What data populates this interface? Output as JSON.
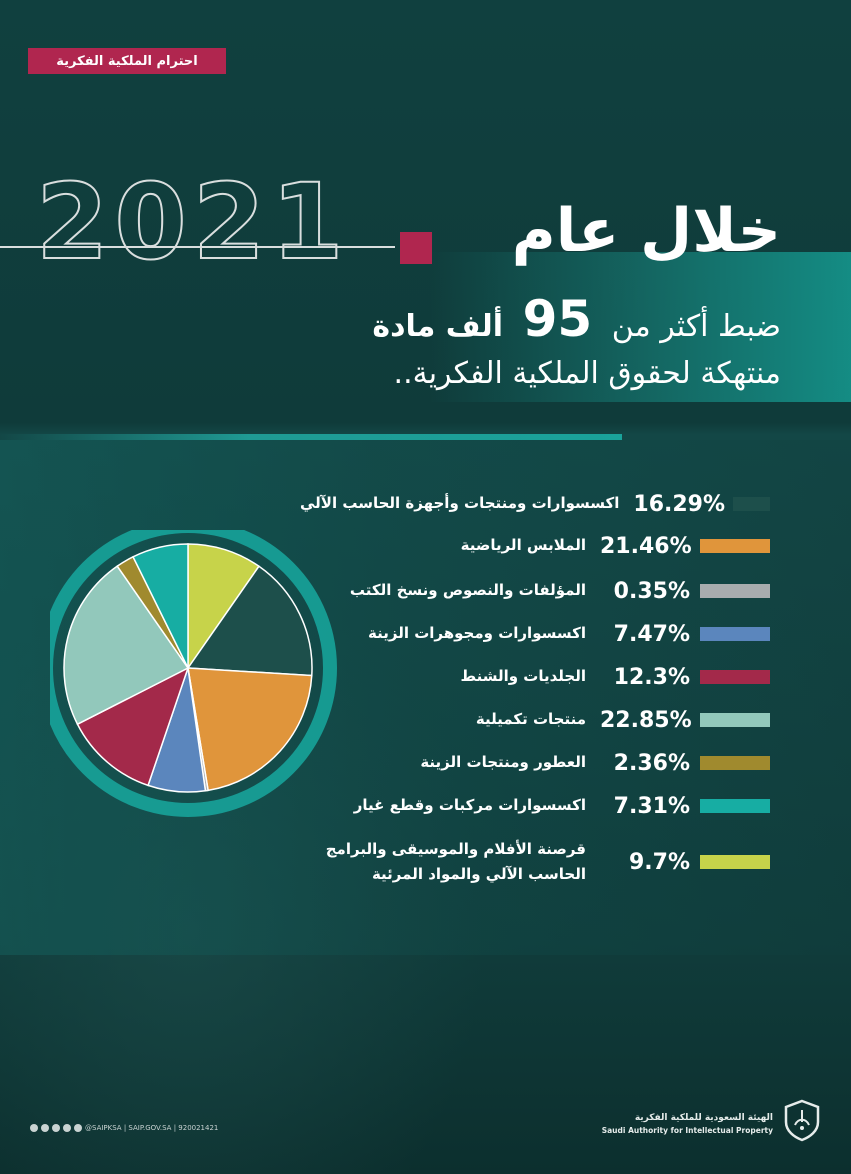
{
  "tag": "احترام الملكية الفكرية",
  "year": "2021",
  "title": "خلال عام",
  "subtitle_line1_pre": "ضبط أكثر من",
  "subtitle_number": "95",
  "subtitle_line1_post": "ألف مادة",
  "subtitle_line2": "منتهكة لحقوق الملكية الفكرية..",
  "chart_data": {
    "type": "pie",
    "title": "",
    "categories": [
      "اكسسوارات ومنتجات وأجهزة الحاسب الآلي",
      "الملابس الرياضية",
      "المؤلفات والنصوص ونسخ الكتب",
      "اكسسوارات ومجوهرات الزينة",
      "الجلديات والشنط",
      "منتجات تكميلية",
      "العطور ومنتجات الزينة",
      "اكسسوارات مركبات وقطع غيار",
      "قرصنة الأفلام والموسيقى والبرامج الحاسب الآلي والمواد المرئية"
    ],
    "labels_line1": [
      "اكسسوارات ومنتجات وأجهزة الحاسب الآلي",
      "الملابس الرياضية",
      "المؤلفات والنصوص ونسخ الكتب",
      "اكسسوارات ومجوهرات الزينة",
      "الجلديات والشنط",
      "منتجات تكميلية",
      "العطور ومنتجات الزينة",
      "اكسسوارات مركبات وقطع غيار",
      "قرصنة الأفلام والموسيقى والبرامج"
    ],
    "labels_line2": [
      "",
      "",
      "",
      "",
      "",
      "",
      "",
      "",
      "الحاسب الآلي والمواد المرئية"
    ],
    "values": [
      16.29,
      21.46,
      0.35,
      7.47,
      12.3,
      22.85,
      2.36,
      7.31,
      9.7
    ],
    "value_labels": [
      "16.29%",
      "21.46%",
      "0.35%",
      "7.47%",
      "12.3%",
      "22.85%",
      "2.36%",
      "7.31%",
      "9.7%"
    ],
    "colors": [
      "#1d4f4b",
      "#e0953b",
      "#a8acae",
      "#5b86bd",
      "#a3294a",
      "#92c8bb",
      "#a08a2e",
      "#17ada3",
      "#c7d34a"
    ],
    "legend_position": "right"
  },
  "footer": {
    "social": "@SAIPKSA | SAIP.GOV.SA | 920021421",
    "org_ar": "الهيئة السعودية للملكية الفكرية",
    "org_en": "Saudi Authority for Intellectual Property"
  }
}
